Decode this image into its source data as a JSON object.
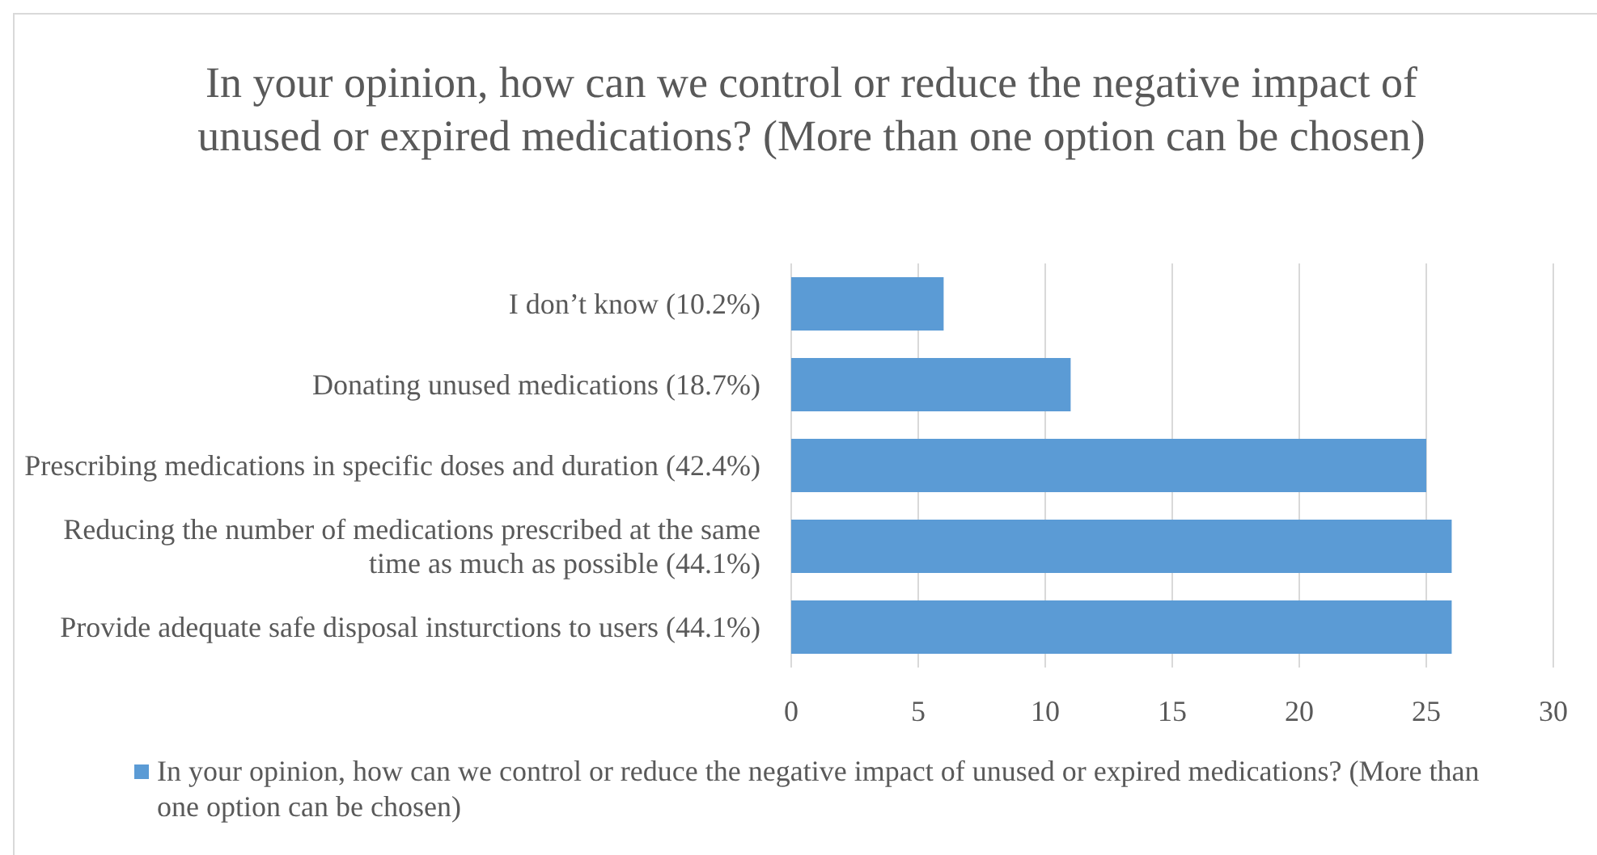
{
  "chart_data": {
    "type": "bar",
    "orientation": "horizontal",
    "title": "In your opinion, how can we control or reduce the negative impact of unused or expired medications? (More than one option can be chosen)",
    "categories": [
      "I don’t know (10.2%)",
      "Donating unused medications (18.7%)",
      "Prescribing medications in specific doses and duration (42.4%)",
      "Reducing the number of medications prescribed at the same time as much as possible (44.1%)",
      "Provide adequate safe disposal insturctions to users (44.1%)"
    ],
    "series": [
      {
        "name": "In your opinion, how can we control or reduce the negative impact of unused or expired medications? (More than one option can be chosen)",
        "color": "#5b9bd5",
        "values": [
          6,
          11,
          25,
          26,
          26
        ]
      }
    ],
    "xlim": [
      0,
      30
    ],
    "xticks": [
      0,
      5,
      10,
      15,
      20,
      25,
      30
    ],
    "grid": "x",
    "legend": "bottom"
  }
}
